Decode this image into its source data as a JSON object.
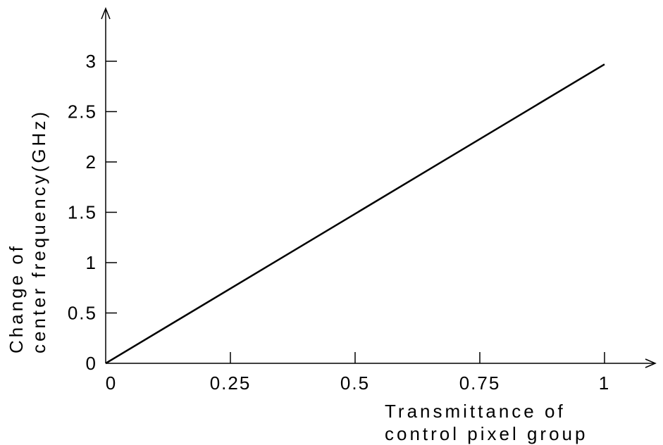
{
  "chart_data": {
    "type": "line",
    "title": "",
    "xlabel": [
      "Transmittance of",
      "control pixel group"
    ],
    "ylabel": [
      "Change of",
      "center frequency(GHz)"
    ],
    "xlim": [
      0,
      1.2
    ],
    "ylim": [
      0,
      3.5
    ],
    "x_ticks": [
      0,
      0.25,
      0.5,
      0.75,
      1
    ],
    "x_tick_labels": [
      "0",
      "0.25",
      "0.5",
      "0.75",
      "1"
    ],
    "y_ticks": [
      0,
      0.5,
      1,
      1.5,
      2,
      2.5,
      3
    ],
    "y_tick_labels": [
      "0",
      "0.5",
      "1",
      "1.5",
      "2",
      "2.5",
      "3"
    ],
    "grid": false,
    "series": [
      {
        "x": [
          0,
          1
        ],
        "y": [
          0,
          2.97
        ],
        "color": "#000000"
      }
    ]
  }
}
